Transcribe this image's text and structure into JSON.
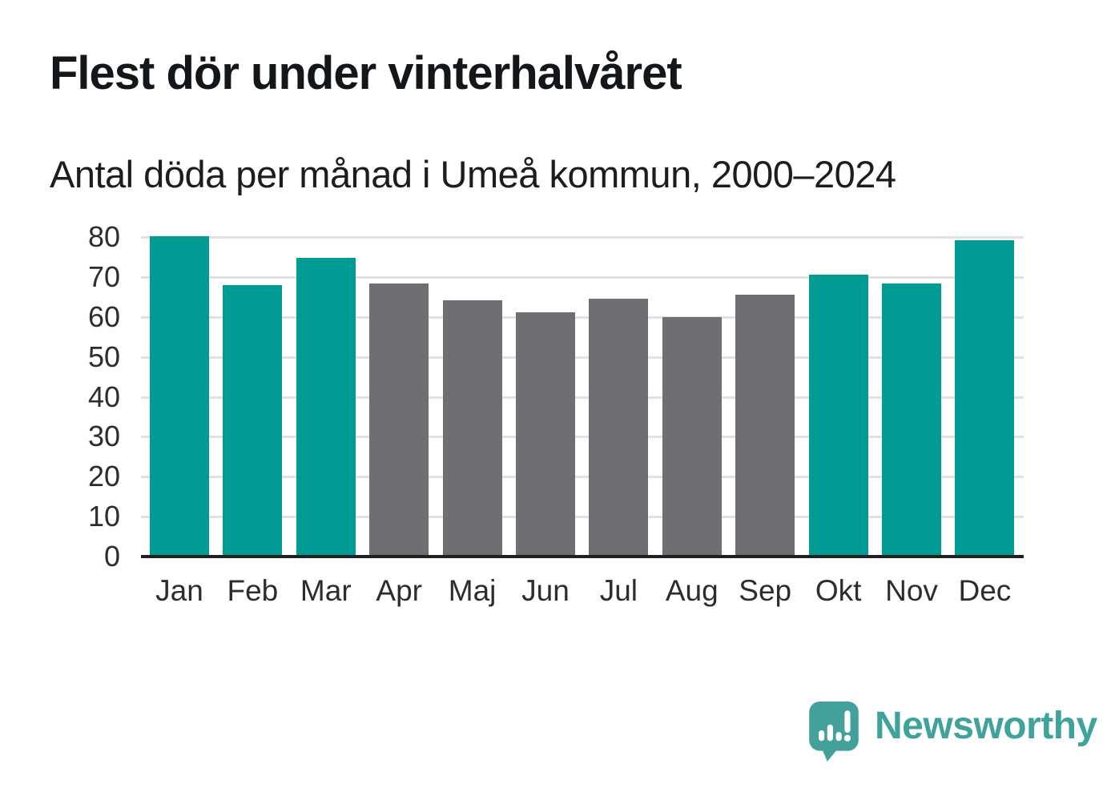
{
  "header": {
    "title": "Flest dör under vinterhalvåret",
    "subtitle": "Antal döda per månad i Umeå kommun, 2000–2024"
  },
  "chart_data": {
    "type": "bar",
    "title": "Flest dör under vinterhalvåret",
    "subtitle": "Antal döda per månad i Umeå kommun, 2000–2024",
    "categories": [
      "Jan",
      "Feb",
      "Mar",
      "Apr",
      "Maj",
      "Jun",
      "Jul",
      "Aug",
      "Sep",
      "Okt",
      "Nov",
      "Dec"
    ],
    "values": [
      80.2,
      67.9,
      74.8,
      68.4,
      64.2,
      61.2,
      64.6,
      60.0,
      65.6,
      70.5,
      68.3,
      79.2
    ],
    "bar_color_keys": [
      "winter",
      "winter",
      "winter",
      "summer",
      "summer",
      "summer",
      "summer",
      "summer",
      "summer",
      "winter",
      "winter",
      "winter"
    ],
    "colors": {
      "winter": "#009b94",
      "summer": "#6e6e73"
    },
    "xlabel": "",
    "ylabel": "",
    "ylim": [
      0,
      80
    ],
    "yticks": [
      0,
      10,
      20,
      30,
      40,
      50,
      60,
      70,
      80
    ],
    "grid": true,
    "gridline_color": "#e1e1e1",
    "axis_line_color": "#1f1f1f",
    "tick_label_color": "#2d2d2d",
    "legend_position": "none"
  },
  "footer": {
    "brand": "Newsworthy",
    "brand_color": "#3fa29b",
    "logo_color": "#44a09a",
    "logo_glyph_color": "#ffffff"
  }
}
